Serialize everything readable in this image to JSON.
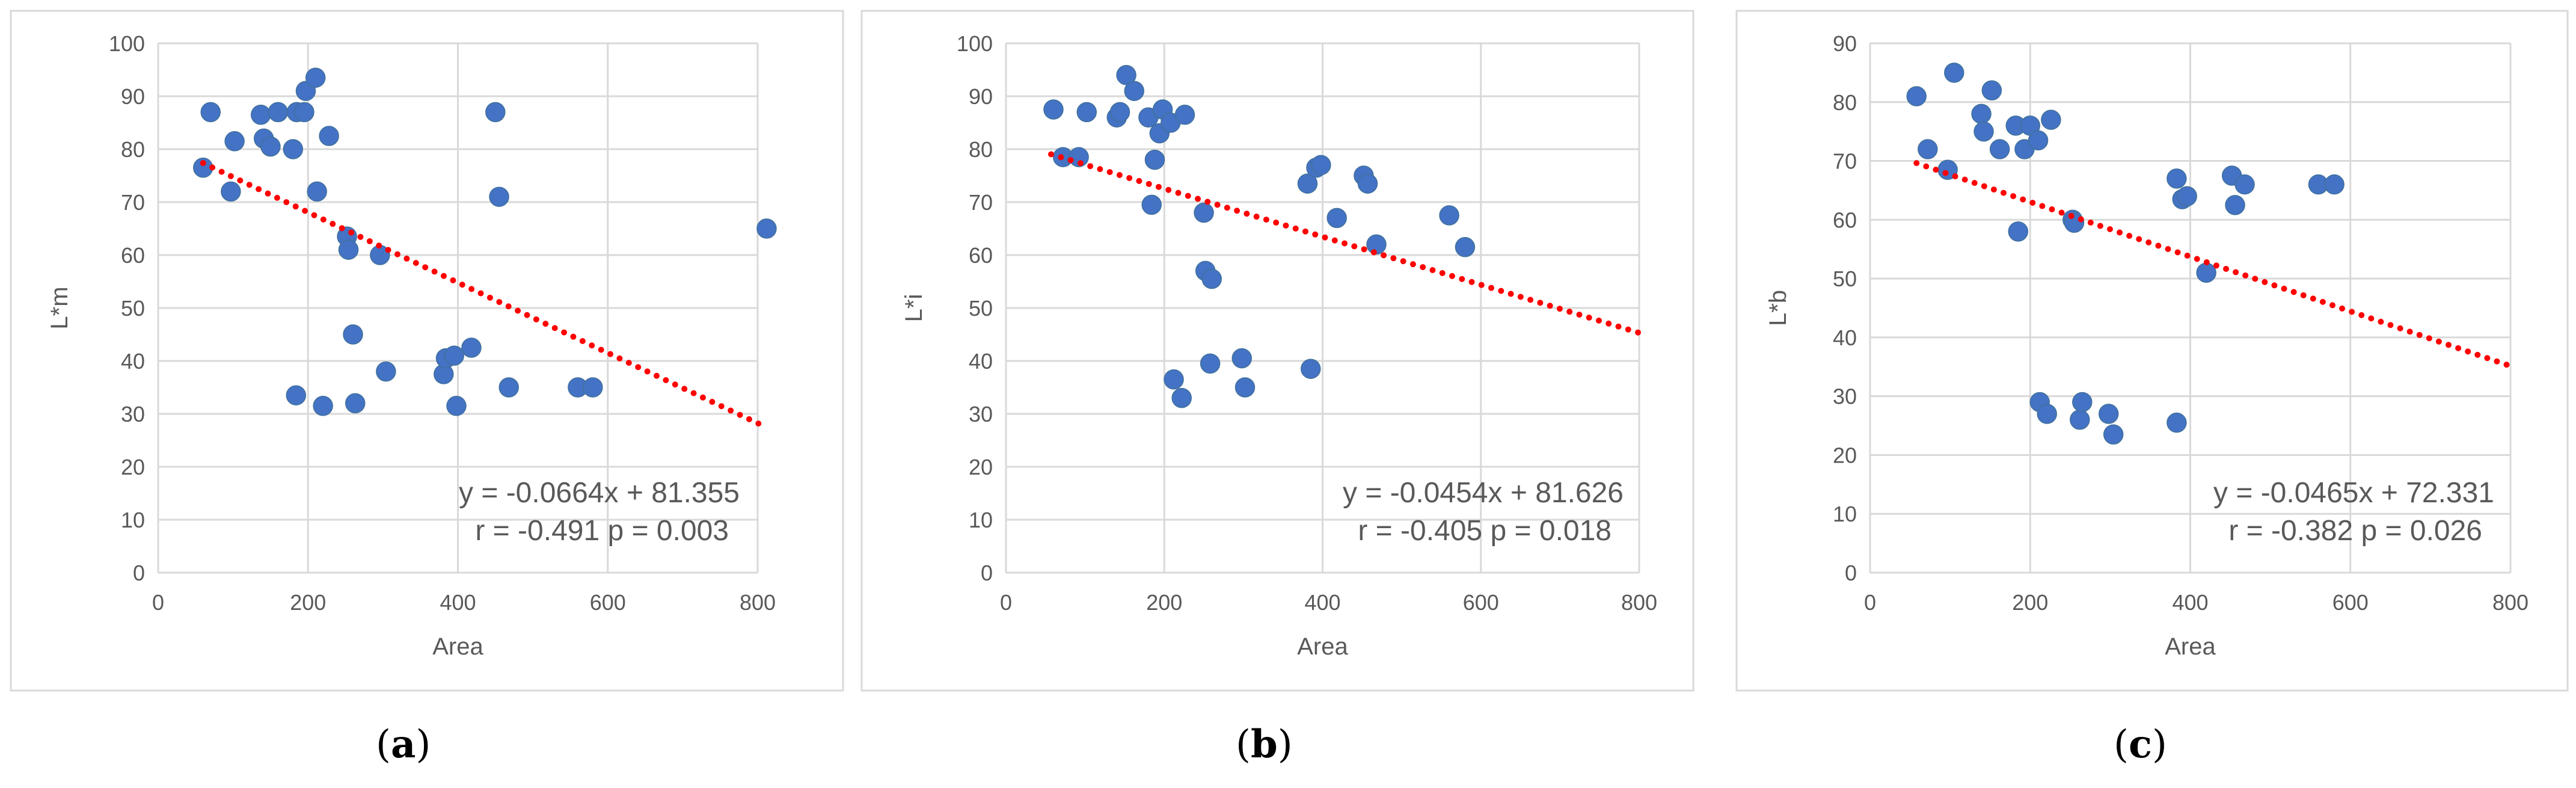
{
  "chart_data": [
    {
      "type": "scatter",
      "panel_label": {
        "open": "(",
        "letter": "a",
        "close": ")"
      },
      "xlabel": "Area",
      "ylabel": "L*m",
      "xlim": [
        0,
        800
      ],
      "ylim": [
        0,
        100
      ],
      "xticks": [
        0,
        200,
        400,
        600,
        800
      ],
      "yticks": [
        0,
        10,
        20,
        30,
        40,
        50,
        60,
        70,
        80,
        90,
        100
      ],
      "grid": true,
      "marker_color": "#4472C4",
      "trend_color": "#FF0000",
      "trendline": {
        "slope": -0.0664,
        "intercept": 81.355,
        "x_start": 60,
        "x_end": 810
      },
      "equation": "y = -0.0664x + 81.355",
      "stats": "r = -0.491 p = 0.003",
      "points": [
        [
          60,
          76.5
        ],
        [
          70,
          87
        ],
        [
          97,
          72
        ],
        [
          102,
          81.5
        ],
        [
          137,
          86.5
        ],
        [
          141,
          82
        ],
        [
          150,
          80.5
        ],
        [
          160,
          87
        ],
        [
          180,
          80
        ],
        [
          185,
          87
        ],
        [
          195,
          87
        ],
        [
          197,
          91
        ],
        [
          210,
          93.5
        ],
        [
          212,
          72
        ],
        [
          228,
          82.5
        ],
        [
          184,
          33.5
        ],
        [
          220,
          31.5
        ],
        [
          252,
          63.5
        ],
        [
          254,
          61
        ],
        [
          260,
          45
        ],
        [
          263,
          32
        ],
        [
          296,
          60
        ],
        [
          304,
          38
        ],
        [
          381,
          37.5
        ],
        [
          384,
          40.5
        ],
        [
          395,
          41
        ],
        [
          398,
          31.5
        ],
        [
          418,
          42.5
        ],
        [
          450,
          87
        ],
        [
          455,
          71
        ],
        [
          468,
          35
        ],
        [
          560,
          35
        ],
        [
          580,
          35
        ],
        [
          812,
          65
        ]
      ]
    },
    {
      "type": "scatter",
      "panel_label": {
        "open": "(",
        "letter": "b",
        "close": ")"
      },
      "xlabel": "Area",
      "ylabel": "L*i",
      "xlim": [
        0,
        800
      ],
      "ylim": [
        0,
        100
      ],
      "xticks": [
        0,
        200,
        400,
        600,
        800
      ],
      "yticks": [
        0,
        10,
        20,
        30,
        40,
        50,
        60,
        70,
        80,
        90,
        100
      ],
      "grid": true,
      "marker_color": "#4472C4",
      "trend_color": "#FF0000",
      "trendline": {
        "slope": -0.0454,
        "intercept": 81.626,
        "x_start": 57,
        "x_end": 800
      },
      "equation": "y = -0.0454x + 81.626",
      "stats": "r = -0.405 p = 0.018",
      "points": [
        [
          60,
          87.5
        ],
        [
          72,
          78.5
        ],
        [
          92,
          78.5
        ],
        [
          102,
          87
        ],
        [
          140,
          86
        ],
        [
          144,
          87
        ],
        [
          152,
          94
        ],
        [
          162,
          91
        ],
        [
          180,
          86
        ],
        [
          184,
          69.5
        ],
        [
          188,
          78
        ],
        [
          194,
          83
        ],
        [
          198,
          87.5
        ],
        [
          208,
          85
        ],
        [
          226,
          86.5
        ],
        [
          250,
          68
        ],
        [
          252,
          57
        ],
        [
          260,
          55.5
        ],
        [
          258,
          39.5
        ],
        [
          212,
          36.5
        ],
        [
          222,
          33
        ],
        [
          298,
          40.5
        ],
        [
          302,
          35
        ],
        [
          381,
          73.5
        ],
        [
          385,
          38.5
        ],
        [
          392,
          76.5
        ],
        [
          398,
          77
        ],
        [
          418,
          67
        ],
        [
          452,
          75
        ],
        [
          457,
          73.5
        ],
        [
          468,
          62
        ],
        [
          560,
          67.5
        ],
        [
          580,
          61.5
        ]
      ]
    },
    {
      "type": "scatter",
      "panel_label": {
        "open": "(",
        "letter": "c",
        "close": ")"
      },
      "xlabel": "Area",
      "ylabel": "L*b",
      "xlim": [
        0,
        800
      ],
      "ylim": [
        0,
        90
      ],
      "xticks": [
        0,
        200,
        400,
        600,
        800
      ],
      "yticks": [
        0,
        10,
        20,
        30,
        40,
        50,
        60,
        70,
        80,
        90
      ],
      "grid": true,
      "marker_color": "#4472C4",
      "trend_color": "#FF0000",
      "trendline": {
        "slope": -0.0465,
        "intercept": 72.331,
        "x_start": 58,
        "x_end": 800
      },
      "equation": "y = -0.0465x + 72.331",
      "stats": "r = -0.382 p = 0.026",
      "points": [
        [
          58,
          81
        ],
        [
          72,
          72
        ],
        [
          97,
          68.5
        ],
        [
          105,
          85
        ],
        [
          139,
          78
        ],
        [
          142,
          75
        ],
        [
          152,
          82
        ],
        [
          162,
          72
        ],
        [
          182,
          76
        ],
        [
          185,
          58
        ],
        [
          193,
          72
        ],
        [
          200,
          76
        ],
        [
          210,
          73.5
        ],
        [
          226,
          77
        ],
        [
          253,
          60
        ],
        [
          255,
          59.5
        ],
        [
          212,
          29
        ],
        [
          221,
          27
        ],
        [
          262,
          26
        ],
        [
          265,
          29
        ],
        [
          298,
          27
        ],
        [
          304,
          23.5
        ],
        [
          383,
          25.5
        ],
        [
          383,
          67
        ],
        [
          390,
          63.5
        ],
        [
          396,
          64
        ],
        [
          420,
          51
        ],
        [
          452,
          67.5
        ],
        [
          456,
          62.5
        ],
        [
          468,
          66
        ],
        [
          560,
          66
        ],
        [
          580,
          66
        ]
      ]
    }
  ]
}
